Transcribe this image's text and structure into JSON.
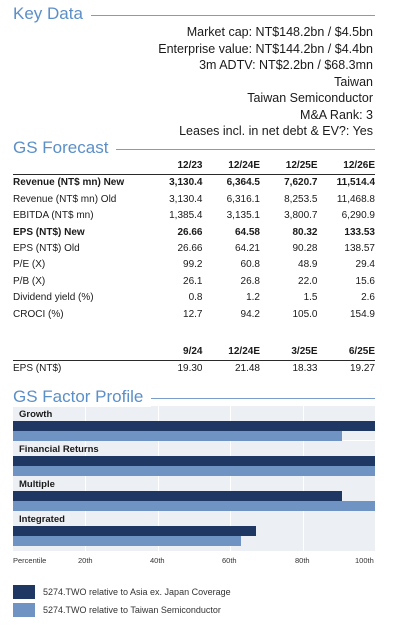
{
  "key_data": {
    "title": "Key Data",
    "lines": [
      "Market cap: NT$148.2bn / $4.5bn",
      "Enterprise value: NT$144.2bn / $4.4bn",
      "3m ADTV: NT$2.2bn / $68.3mn",
      "Taiwan",
      "Taiwan Semiconductor",
      "M&A Rank: 3",
      "Leases incl. in net debt & EV?: Yes"
    ]
  },
  "forecast": {
    "title": "GS Forecast",
    "headers": [
      "12/23",
      "12/24E",
      "12/25E",
      "12/26E"
    ],
    "rows": [
      {
        "label": "Revenue (NT$ mn) New",
        "bold": true,
        "values": [
          "3,130.4",
          "6,364.5",
          "7,620.7",
          "11,514.4"
        ]
      },
      {
        "label": "Revenue (NT$ mn) Old",
        "bold": false,
        "values": [
          "3,130.4",
          "6,316.1",
          "8,253.5",
          "11,468.8"
        ]
      },
      {
        "label": "EBITDA (NT$ mn)",
        "bold": false,
        "values": [
          "1,385.4",
          "3,135.1",
          "3,800.7",
          "6,290.9"
        ]
      },
      {
        "label": "EPS (NT$) New",
        "bold": true,
        "values": [
          "26.66",
          "64.58",
          "80.32",
          "133.53"
        ]
      },
      {
        "label": "EPS (NT$) Old",
        "bold": false,
        "values": [
          "26.66",
          "64.21",
          "90.28",
          "138.57"
        ]
      },
      {
        "label": "P/E (X)",
        "bold": false,
        "values": [
          "99.2",
          "60.8",
          "48.9",
          "29.4"
        ]
      },
      {
        "label": "P/B (X)",
        "bold": false,
        "values": [
          "26.1",
          "26.8",
          "22.0",
          "15.6"
        ]
      },
      {
        "label": "Dividend yield (%)",
        "bold": false,
        "values": [
          "0.8",
          "1.2",
          "1.5",
          "2.6"
        ]
      },
      {
        "label": "CROCI (%)",
        "bold": false,
        "values": [
          "12.7",
          "94.2",
          "105.0",
          "154.9"
        ]
      }
    ],
    "quarterly_headers": [
      "9/24",
      "12/24E",
      "3/25E",
      "6/25E"
    ],
    "quarterly_row": {
      "label": "EPS (NT$)",
      "values": [
        "19.30",
        "21.48",
        "18.33",
        "19.27"
      ]
    }
  },
  "factor_profile": {
    "title": "GS Factor Profile",
    "ticks": [
      "Percentile",
      "20th",
      "40th",
      "60th",
      "80th",
      "100th"
    ],
    "factors": [
      {
        "name": "Growth",
        "asia_pct": 100,
        "taiwan_pct": 91
      },
      {
        "name": "Financial Returns",
        "asia_pct": 100,
        "taiwan_pct": 100
      },
      {
        "name": "Multiple",
        "asia_pct": 91,
        "taiwan_pct": 100
      },
      {
        "name": "Integrated",
        "asia_pct": 67,
        "taiwan_pct": 63
      }
    ],
    "legend": [
      {
        "label": "5274.TWO relative to Asia ex. Japan Coverage",
        "color": "#1e3763"
      },
      {
        "label": "5274.TWO relative to Taiwan Semiconductor",
        "color": "#6f93c2"
      }
    ]
  }
}
